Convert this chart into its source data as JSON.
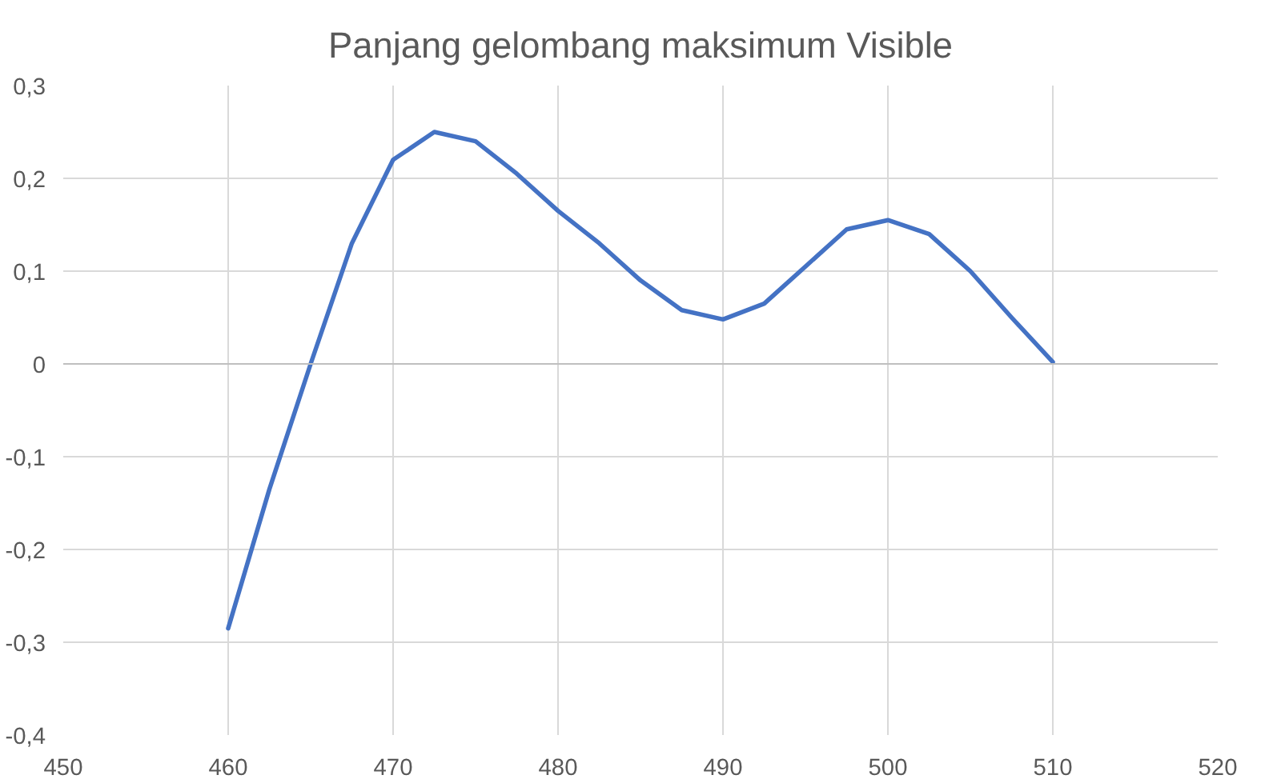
{
  "chart_data": {
    "type": "line",
    "title": "Panjang gelombang maksimum Visible",
    "x": [
      460,
      462.5,
      465,
      467.5,
      470,
      472.5,
      475,
      477.5,
      480,
      482.5,
      485,
      487.5,
      490,
      492.5,
      495,
      497.5,
      500,
      502.5,
      505,
      507.5,
      510
    ],
    "series": [
      {
        "color": "#4472c4",
        "values": [
          -0.285,
          -0.135,
          0.0,
          0.13,
          0.22,
          0.25,
          0.24,
          0.205,
          0.165,
          0.13,
          0.09,
          0.058,
          0.048,
          0.065,
          0.105,
          0.145,
          0.155,
          0.14,
          0.1,
          0.05,
          0.002
        ]
      }
    ],
    "xlim": [
      450,
      520
    ],
    "xticks": [
      450,
      460,
      470,
      480,
      490,
      500,
      510,
      520
    ],
    "ylim": [
      -0.4,
      0.3
    ],
    "yticks": [
      {
        "value": -0.4,
        "label": "-0,4"
      },
      {
        "value": -0.3,
        "label": "-0,3"
      },
      {
        "value": -0.2,
        "label": "-0,2"
      },
      {
        "value": -0.1,
        "label": "-0,1"
      },
      {
        "value": 0,
        "label": "0"
      },
      {
        "value": 0.1,
        "label": "0,1"
      },
      {
        "value": 0.2,
        "label": "0,2"
      },
      {
        "value": 0.3,
        "label": "0,3"
      }
    ],
    "grid": true,
    "marker": "none",
    "line_style": "solid"
  }
}
